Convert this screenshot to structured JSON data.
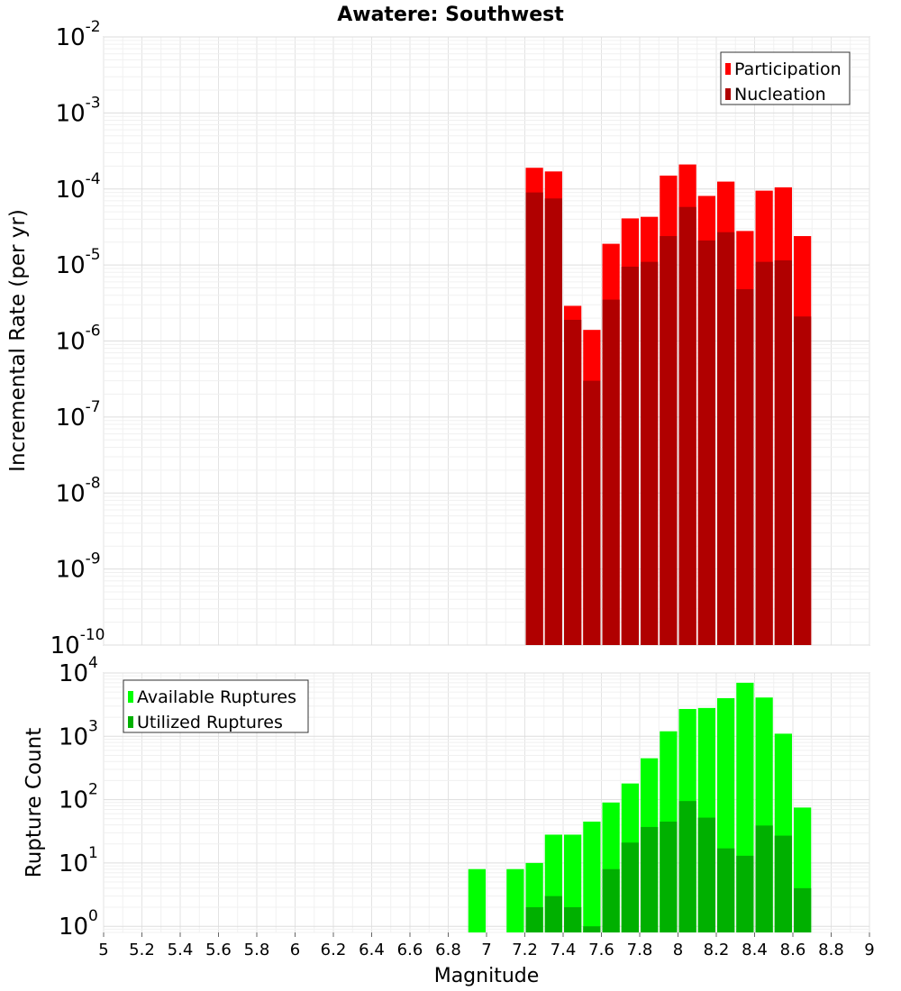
{
  "chart_data": [
    {
      "type": "bar",
      "title": "Awatere: Southwest",
      "ylabel": "Incremental Rate (per yr)",
      "xlabel": "",
      "yscale": "log",
      "ylim": [
        1e-10,
        0.01
      ],
      "xlim": [
        5,
        9
      ],
      "grid": true,
      "legend_position": "top-right",
      "x": [
        7.25,
        7.35,
        7.45,
        7.55,
        7.65,
        7.75,
        7.85,
        7.95,
        8.05,
        8.15,
        8.25,
        8.35,
        8.45,
        8.55,
        8.65
      ],
      "series": [
        {
          "name": "Participation",
          "color": "#ff0000",
          "values": [
            0.00019,
            0.00017,
            2.9e-06,
            1.4e-06,
            1.9e-05,
            4.1e-05,
            4.3e-05,
            0.00015,
            0.00021,
            8.1e-05,
            0.000125,
            2.8e-05,
            9.5e-05,
            0.000105,
            2.4e-05
          ]
        },
        {
          "name": "Nucleation",
          "color": "#b00000",
          "values": [
            9e-05,
            7.5e-05,
            1.9e-06,
            3e-07,
            3.5e-06,
            9.5e-06,
            1.1e-05,
            2.4e-05,
            5.8e-05,
            2.1e-05,
            2.7e-05,
            4.8e-06,
            1.1e-05,
            1.15e-05,
            2.1e-06
          ]
        }
      ],
      "y_ticks": [
        {
          "base": "10",
          "exp": "-10",
          "value": 1e-10
        },
        {
          "base": "10",
          "exp": "-9",
          "value": 1e-09
        },
        {
          "base": "10",
          "exp": "-8",
          "value": 1e-08
        },
        {
          "base": "10",
          "exp": "-7",
          "value": 1e-07
        },
        {
          "base": "10",
          "exp": "-6",
          "value": 1e-06
        },
        {
          "base": "10",
          "exp": "-5",
          "value": 1e-05
        },
        {
          "base": "10",
          "exp": "-4",
          "value": 0.0001
        },
        {
          "base": "10",
          "exp": "-3",
          "value": 0.001
        },
        {
          "base": "10",
          "exp": "-2",
          "value": 0.01
        }
      ]
    },
    {
      "type": "bar",
      "title": "",
      "ylabel": "Rupture Count",
      "xlabel": "Magnitude",
      "yscale": "log",
      "ylim": [
        0.8,
        10000
      ],
      "xlim": [
        5,
        9
      ],
      "grid": true,
      "legend_position": "top-left",
      "x": [
        6.95,
        7.15,
        7.25,
        7.35,
        7.45,
        7.55,
        7.65,
        7.75,
        7.85,
        7.95,
        8.05,
        8.15,
        8.25,
        8.35,
        8.45,
        8.55,
        8.65
      ],
      "series": [
        {
          "name": "Available Ruptures",
          "color": "#00ff00",
          "values": [
            8,
            8,
            10,
            28,
            28,
            45,
            90,
            180,
            450,
            1200,
            2700,
            2800,
            4000,
            7000,
            4100,
            1100,
            75
          ]
        },
        {
          "name": "Utilized Ruptures",
          "color": "#00b000",
          "values": [
            0,
            0,
            2,
            3,
            2,
            1,
            8,
            21,
            37,
            45,
            95,
            52,
            17,
            13,
            39,
            27,
            4
          ]
        }
      ],
      "x_ticks": [
        "5",
        "5.2",
        "5.4",
        "5.6",
        "5.8",
        "6",
        "6.2",
        "6.4",
        "6.6",
        "6.8",
        "7",
        "7.2",
        "7.4",
        "7.6",
        "7.8",
        "8",
        "8.2",
        "8.4",
        "8.6",
        "8.8",
        "9"
      ],
      "y_ticks": [
        {
          "base": "10",
          "exp": "0",
          "value": 1
        },
        {
          "base": "10",
          "exp": "1",
          "value": 10
        },
        {
          "base": "10",
          "exp": "2",
          "value": 100
        },
        {
          "base": "10",
          "exp": "3",
          "value": 1000
        },
        {
          "base": "10",
          "exp": "4",
          "value": 10000
        }
      ]
    }
  ]
}
